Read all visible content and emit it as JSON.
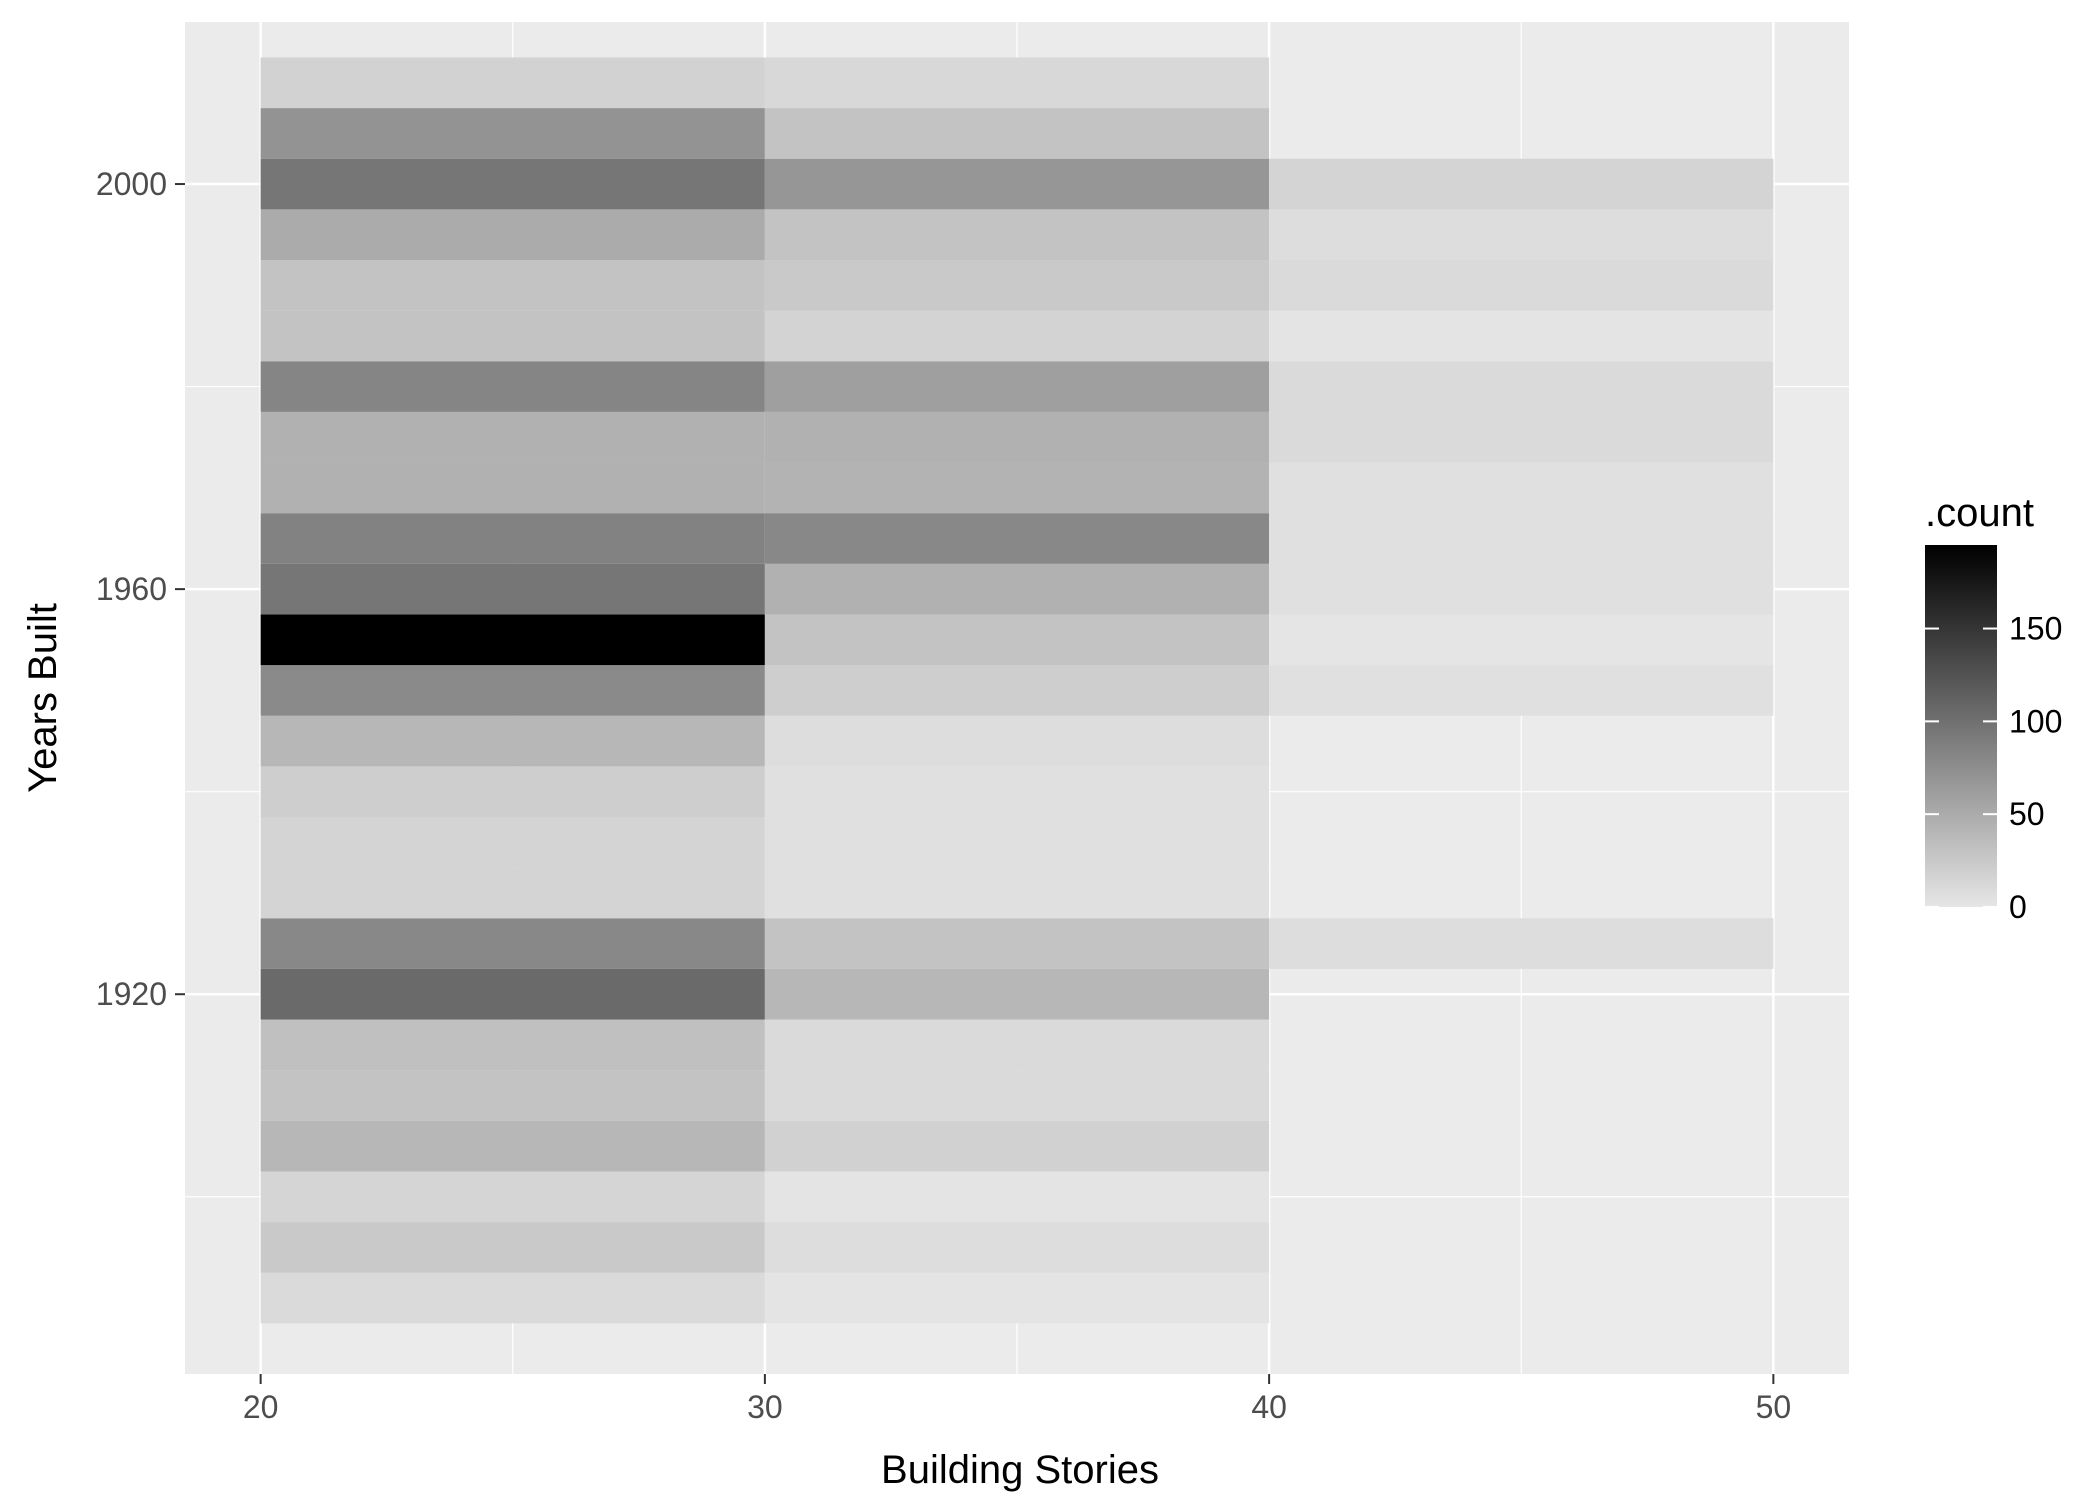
{
  "chart_data": {
    "type": "heatmap",
    "title": "",
    "xlabel": "Building Stories",
    "ylabel": "Years Built",
    "xlim": [
      18.5,
      51.5
    ],
    "ylim": [
      1882.5,
      2016
    ],
    "x_ticks": [
      "20",
      "30",
      "40",
      "50"
    ],
    "y_ticks": [
      "1920",
      "1960",
      "2000"
    ],
    "bin_width": 10,
    "bin_height": 5,
    "x_bins": [
      [
        20,
        30
      ],
      [
        30,
        40
      ],
      [
        40,
        50
      ]
    ],
    "y_bins": [
      1890,
      1895,
      1900,
      1905,
      1910,
      1915,
      1920,
      1925,
      1930,
      1935,
      1940,
      1945,
      1950,
      1955,
      1960,
      1965,
      1970,
      1975,
      1980,
      1985,
      1990,
      1995,
      2000,
      2005,
      2010
    ],
    "counts": [
      [
        10,
        2,
        null
      ],
      [
        25,
        8,
        null
      ],
      [
        14,
        2,
        null
      ],
      [
        40,
        18,
        null
      ],
      [
        30,
        10,
        null
      ],
      [
        32,
        10,
        null
      ],
      [
        105,
        40,
        null
      ],
      [
        80,
        30,
        8
      ],
      [
        15,
        5,
        null
      ],
      [
        15,
        5,
        null
      ],
      [
        20,
        5,
        null
      ],
      [
        40,
        8,
        null
      ],
      [
        78,
        20,
        5
      ],
      [
        195,
        30,
        1
      ],
      [
        95,
        45,
        5
      ],
      [
        85,
        80,
        5
      ],
      [
        45,
        43,
        5
      ],
      [
        45,
        45,
        10
      ],
      [
        82,
        60,
        10
      ],
      [
        30,
        16,
        2
      ],
      [
        30,
        25,
        10
      ],
      [
        50,
        30,
        8
      ],
      [
        95,
        68,
        15
      ],
      [
        70,
        30,
        null
      ],
      [
        17,
        12,
        null
      ]
    ],
    "scale": {
      "min": 0,
      "max": 195,
      "low_color": "#e6e6e6",
      "high_color": "#000000"
    },
    "legend": {
      "title": ".count",
      "position": "right",
      "breaks": [
        0,
        50,
        100,
        150
      ],
      "labels": [
        "0",
        "50",
        "100",
        "150"
      ]
    },
    "panel_background": "#ebebeb",
    "grid": true
  }
}
